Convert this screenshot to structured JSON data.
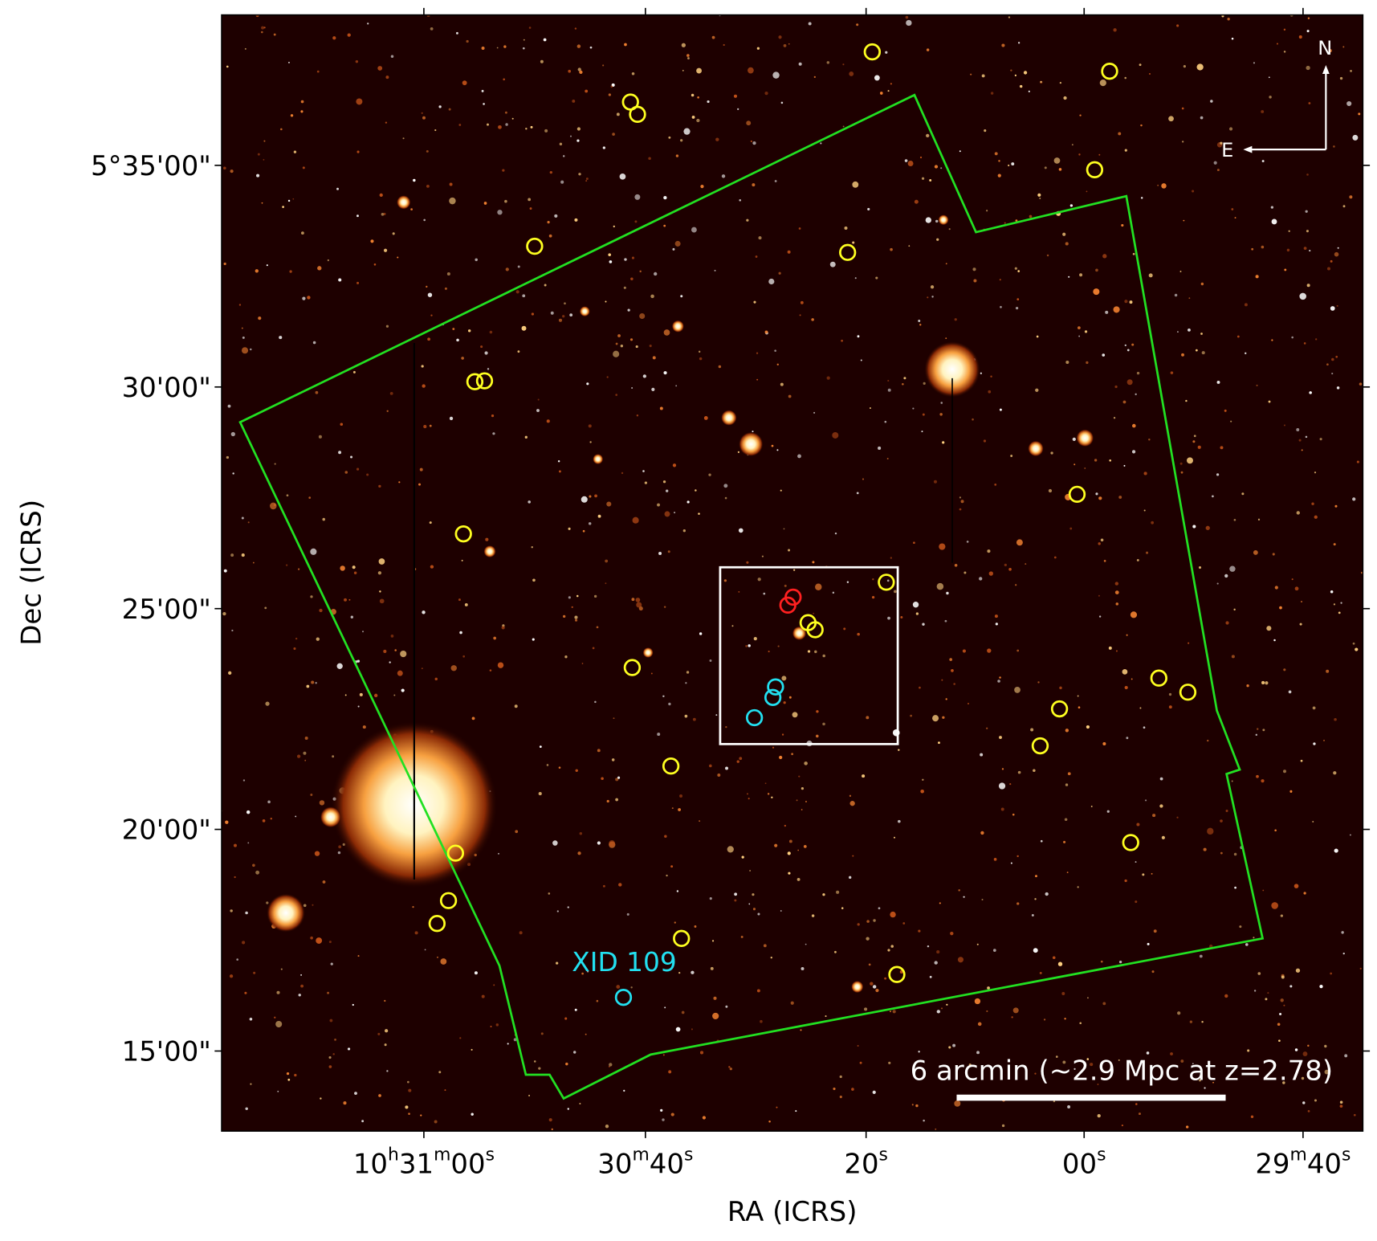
{
  "axes": {
    "x_label": "RA (ICRS)",
    "y_label": "Dec (ICRS)",
    "x_tick_labels": [
      "10h31m00s",
      "30m40s",
      "20s",
      "00s",
      "29m40s"
    ],
    "y_tick_labels": [
      "5°35'00\"",
      "30'00\"",
      "25'00\"",
      "20'00\"",
      "15'00\""
    ]
  },
  "annotations": {
    "source": "XID 109",
    "scale_bar": "6 arcmin (~2.9 Mpc at z=2.78)",
    "north": "N",
    "east": "E"
  }
}
